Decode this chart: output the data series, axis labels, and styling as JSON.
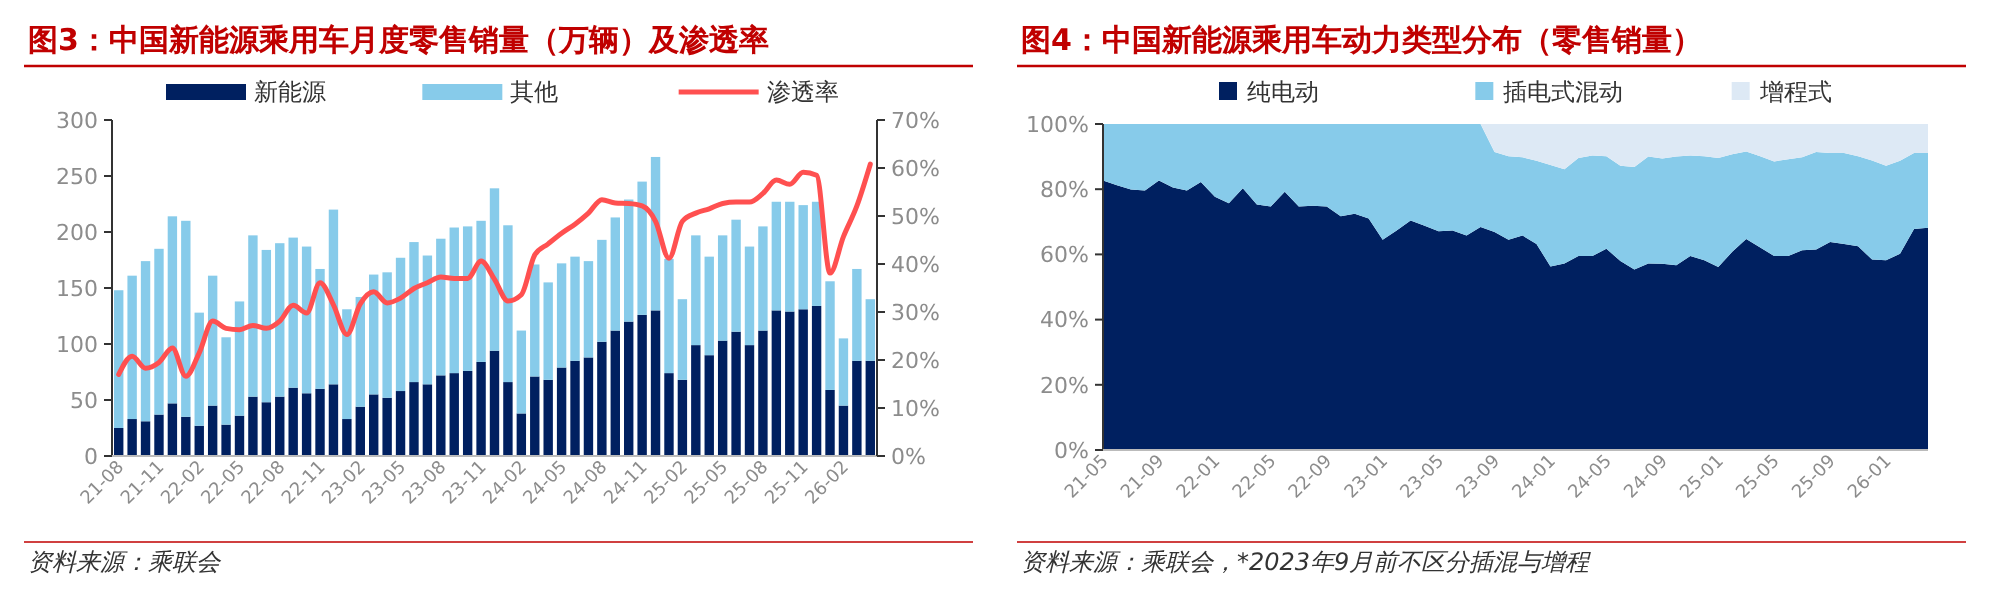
{
  "chart_data": [
    {
      "type": "bar",
      "title": "图3：中国新能源乘用车月度零售销量（万辆）及渗透率",
      "stacked": true,
      "legend": "top",
      "annotations": [
        "资料来源：乘联会"
      ],
      "categories": [
        "21-08",
        null,
        null,
        "21-11",
        null,
        null,
        "22-02",
        null,
        null,
        "22-05",
        null,
        null,
        "22-08",
        null,
        null,
        "22-11",
        null,
        null,
        "23-02",
        null,
        null,
        "23-05",
        null,
        null,
        "23-08",
        null,
        null,
        "23-11",
        null,
        null,
        "24-02",
        null,
        null,
        "24-05",
        null,
        null,
        "24-08",
        null,
        null,
        "24-11",
        null,
        null,
        "25-02",
        null,
        null,
        "25-05",
        null,
        null,
        "25-08",
        null,
        null,
        "25-11",
        null,
        null,
        "26-02",
        null,
        null
      ],
      "ylim": [
        0,
        300
      ],
      "yticks": [
        0,
        50,
        100,
        150,
        200,
        250,
        300
      ],
      "y2lim": [
        0,
        70
      ],
      "y2ticks": [
        {
          "value": 0,
          "label": "0%"
        },
        {
          "value": 10,
          "label": "10%"
        },
        {
          "value": 20,
          "label": "20%"
        },
        {
          "value": 30,
          "label": "30%"
        },
        {
          "value": 40,
          "label": "40%"
        },
        {
          "value": 50,
          "label": "50%"
        },
        {
          "value": 60,
          "label": "60%"
        },
        {
          "value": 70,
          "label": "70%"
        }
      ],
      "series": [
        {
          "name": "新能源",
          "color": "#002060",
          "values": [
            25,
            33,
            31,
            37,
            47,
            35,
            27,
            45,
            28,
            36,
            53,
            48,
            53,
            61,
            56,
            60,
            64,
            33,
            44,
            55,
            52,
            58,
            66,
            64,
            72,
            74,
            76,
            84,
            94,
            66,
            38,
            71,
            68,
            79,
            85,
            88,
            102,
            112,
            120,
            126,
            130,
            74,
            68,
            99,
            90,
            103,
            111,
            99,
            112,
            130,
            129,
            131,
            134,
            59,
            45,
            85,
            85
          ]
        },
        {
          "name": "其他",
          "color": "#87cbea",
          "values": [
            123,
            128,
            143,
            148,
            167,
            175,
            101,
            116,
            78,
            102,
            144,
            136,
            137,
            134,
            131,
            107,
            156,
            98,
            98,
            107,
            112,
            119,
            125,
            115,
            122,
            130,
            129,
            126,
            145,
            140,
            74,
            100,
            87,
            93,
            93,
            86,
            91,
            101,
            109,
            119,
            137,
            102,
            72,
            98,
            88,
            94,
            100,
            88,
            93,
            97,
            98,
            93,
            93,
            97,
            60,
            82,
            55
          ]
        },
        {
          "name": "渗透率",
          "type": "line",
          "axis": "y2",
          "color": "#ff5050",
          "values": [
            17.0,
            20.8,
            18.3,
            19.5,
            22.5,
            16.6,
            21.5,
            28.1,
            26.6,
            26.3,
            27.2,
            26.6,
            28.1,
            31.4,
            29.8,
            36.1,
            31.5,
            25.3,
            31.7,
            34.2,
            31.9,
            32.9,
            34.9,
            36.1,
            37.3,
            37.0,
            37.0,
            40.6,
            36.8,
            32.3,
            33.6,
            41.9,
            44.2,
            46.4,
            48.3,
            50.6,
            53.4,
            52.7,
            52.6,
            52.1,
            48.9,
            41.2,
            48.9,
            50.6,
            51.5,
            52.6,
            52.9,
            52.9,
            54.7,
            57.5,
            56.6,
            59.1,
            58.5,
            38.1,
            45.7,
            52.1,
            60.8
          ]
        }
      ]
    },
    {
      "type": "area",
      "title": "图4：中国新能源乘用车动力类型分布（零售销量）",
      "stacked": true,
      "legend": "top",
      "annotations": [
        "资料来源：乘联会，*2023年9月前不区分插混与增程"
      ],
      "categories": [
        "21-05",
        null,
        null,
        null,
        "21-09",
        null,
        null,
        null,
        "22-01",
        null,
        null,
        null,
        "22-05",
        null,
        null,
        null,
        "22-09",
        null,
        null,
        null,
        "23-01",
        null,
        null,
        null,
        "23-05",
        null,
        null,
        null,
        "23-09",
        null,
        null,
        null,
        "24-01",
        null,
        null,
        null,
        "24-05",
        null,
        null,
        null,
        "24-09",
        null,
        null,
        null,
        "25-01",
        null,
        null,
        null,
        "25-05",
        null,
        null,
        null,
        "25-09",
        null,
        null,
        null,
        "26-01",
        null,
        null,
        null
      ],
      "ylim": [
        0,
        100
      ],
      "yticks": [
        {
          "value": 0,
          "label": "0%"
        },
        {
          "value": 20,
          "label": "20%"
        },
        {
          "value": 40,
          "label": "40%"
        },
        {
          "value": 60,
          "label": "60%"
        },
        {
          "value": 80,
          "label": "80%"
        },
        {
          "value": 100,
          "label": "100%"
        }
      ],
      "series": [
        {
          "name": "纯电动",
          "color": "#002060",
          "values": [
            82.7,
            81.2,
            79.9,
            79.6,
            82.7,
            80.5,
            79.6,
            82.2,
            77.7,
            75.7,
            80.3,
            75.3,
            74.7,
            79.2,
            74.7,
            74.9,
            74.7,
            71.7,
            72.5,
            71.0,
            64.5,
            67.3,
            70.4,
            68.8,
            67.1,
            67.3,
            65.8,
            68.4,
            66.9,
            64.5,
            65.8,
            63.2,
            56.3,
            57.2,
            59.5,
            59.5,
            61.7,
            58.0,
            55.4,
            57.2,
            57.1,
            56.7,
            59.5,
            58.2,
            56.1,
            60.8,
            64.7,
            62.1,
            59.5,
            59.5,
            61.3,
            61.5,
            63.8,
            63.2,
            62.5,
            58.4,
            58.2,
            60.2,
            67.8,
            68.2
          ]
        },
        {
          "name": "插电式混动",
          "color": "#87cbea",
          "values": [
            17.3,
            18.8,
            20.1,
            20.4,
            17.3,
            19.5,
            20.4,
            17.8,
            22.3,
            24.3,
            19.7,
            24.7,
            25.3,
            20.8,
            25.3,
            25.1,
            25.3,
            28.3,
            27.5,
            29.0,
            35.5,
            32.7,
            29.6,
            31.2,
            32.9,
            32.7,
            34.2,
            31.6,
            24.5,
            25.6,
            24.0,
            25.5,
            31.1,
            28.9,
            30.1,
            30.8,
            28.4,
            29.2,
            31.4,
            32.8,
            32.3,
            33.3,
            30.8,
            31.9,
            33.5,
            29.9,
            26.9,
            28.0,
            29.0,
            29.7,
            28.5,
            29.9,
            27.3,
            27.9,
            27.6,
            30.4,
            29.0,
            28.5,
            23.3,
            22.9
          ]
        },
        {
          "name": "增程式",
          "color": "#dde9f5",
          "values": [
            0,
            0,
            0,
            0,
            0,
            0,
            0,
            0,
            0,
            0,
            0,
            0,
            0,
            0,
            0,
            0,
            0,
            0,
            0,
            0,
            0,
            0,
            0,
            0,
            0,
            0,
            0,
            0,
            8.6,
            9.9,
            10.2,
            11.3,
            12.6,
            13.9,
            10.4,
            9.7,
            9.9,
            12.8,
            13.2,
            10.0,
            10.6,
            10.0,
            9.7,
            9.9,
            10.4,
            9.3,
            8.4,
            9.9,
            11.5,
            10.8,
            10.2,
            8.6,
            8.9,
            8.9,
            9.9,
            11.2,
            12.8,
            11.3,
            8.9,
            8.9
          ]
        }
      ]
    }
  ]
}
